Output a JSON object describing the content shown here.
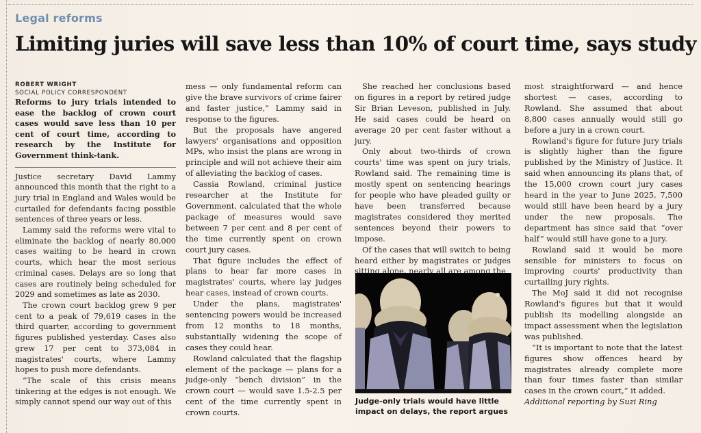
{
  "kicker": "Legal reforms",
  "headline": "Limiting juries will save less than 10% of court time, says study",
  "byline": {
    "name": "ROBERT WRIGHT",
    "role": "SOCIAL POLICY CORRESPONDENT"
  },
  "standfirst": "Reforms to jury trials intended to ease the backlog of crown court cases would save less than 10 per cent of court time, according to research by the Institute for Government think-tank.",
  "columns": {
    "col1": [
      "Justice secretary David Lammy announced this month that the right to a jury trial in England and Wales would be curtailed for defendants facing possible sentences of three years or less.",
      "Lammy said the reforms were vital to eliminate the backlog of nearly 80,000 cases waiting to be heard in crown courts, which hear the most serious criminal cases. Delays are so long that cases are routinely being scheduled for 2029 and sometimes as late as 2030.",
      "The crown court backlog grew 9 per cent to a peak of 79,619 cases in the third quarter, according to government figures published yesterday. Cases also grew 17 per cent to 373,084 in magistrates' courts, where Lammy hopes to push more defendants.",
      "“The scale of this crisis means tinkering at the edges is not enough. We simply cannot spend our way out of this"
    ],
    "col2": [
      "mess — only fundamental reform can give the brave survivors of crime fairer and faster justice,” Lammy said in response to the figures.",
      "But the proposals have angered lawyers' organisations and opposition MPs, who insist the plans are wrong in principle and will not achieve their aim of alleviating the backlog of cases.",
      "Cassia Rowland, criminal justice researcher at the Institute for Government, calculated that the whole package of measures would save between 7 per cent and 8 per cent of the time currently spent on crown court jury cases.",
      "That figure includes the effect of plans to hear far more cases in magistrates' courts, where lay judges hear cases, instead of crown courts.",
      "Under the plans, magistrates' sentencing powers would be increased from 12 months to 18 months, substantially widening the scope of cases they could hear.",
      "Rowland calculated that the flagship element of the package — plans for a judge-only “bench division” in the crown court — would save 1.5-2.5 per cent of the time currently spent in crown courts."
    ],
    "col3": [
      "She reached her conclusions based on figures in a report by retired judge Sir Brian Leveson, published in July. He said cases could be heard on average 20 per cent faster without a jury.",
      "Only about two-thirds of crown courts' time was spent on jury trials, Rowland said. The remaining time is mostly spent on sentencing hearings for people who have pleaded guilty or have been transferred because magistrates considered they merited sentences beyond their powers to impose.",
      "Of the cases that will switch to being heard either by magistrates or judges sitting alone, nearly all are among the"
    ],
    "col4": [
      "most straightforward — and hence shortest — cases, according to Rowland. She assumed that about 8,800 cases annually would still go before a jury in a crown court.",
      "Rowland's figure for future jury trials is slightly higher than the figure published by the Ministry of Justice. It said when announcing its plans that, of the 15,000 crown court jury cases heard in the year to June 2025, 7,500 would still have been heard by a jury under the new proposals. The department has since said that “over half” would still have gone to a jury.",
      "Rowland said it would be more sensible for ministers to focus on improving courts' productivity than curtailing jury rights.",
      "The MoJ said it did not recognise Rowland's figures but that it would publish its modelling alongside an impact assessment when the legislation was published.",
      "“It is important to note that the latest figures show offences heard by magistrates already complete more than four times faster than similar cases in the crown court,” it added."
    ]
  },
  "credit": "Additional reporting by Suzi Ring",
  "photo": {
    "caption": "Judge-only trials would have little impact on delays, the report argues"
  }
}
